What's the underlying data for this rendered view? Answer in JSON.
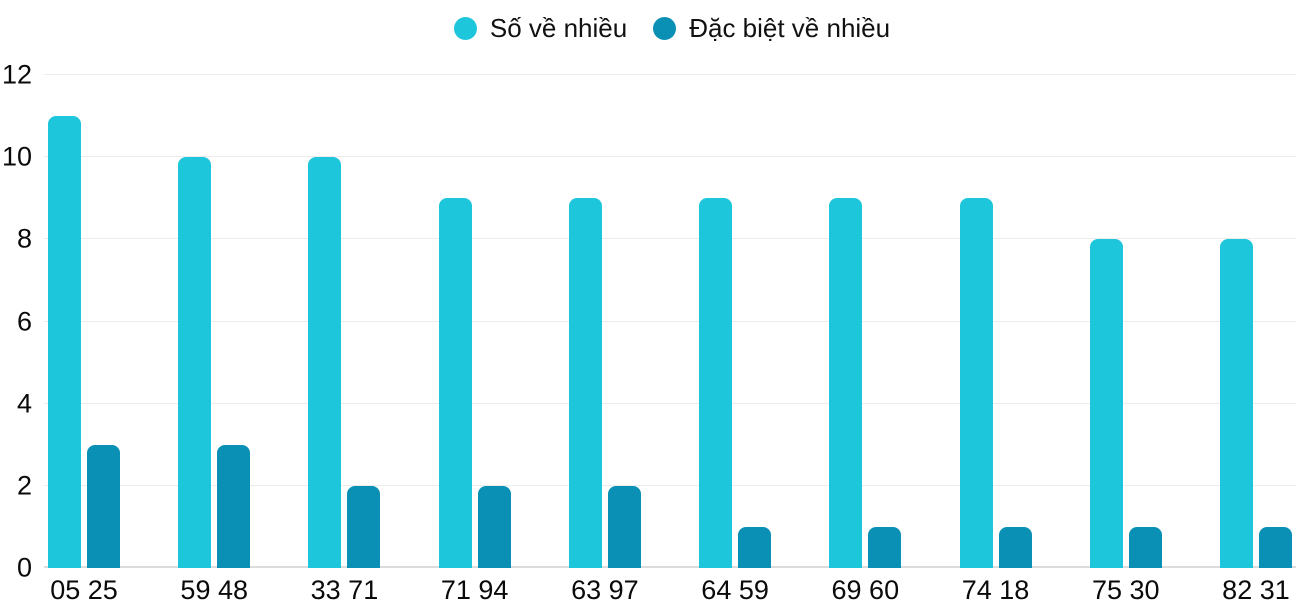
{
  "chart_data": {
    "type": "bar",
    "title": "",
    "categories": [
      "05 25",
      "59 48",
      "33 71",
      "71 94",
      "63 97",
      "64 59",
      "69 60",
      "74 18",
      "75 30",
      "82 31"
    ],
    "series": [
      {
        "name": "Số về nhiều",
        "color": "#1EC6DB",
        "values": [
          11,
          10,
          10,
          9,
          9,
          9,
          9,
          9,
          8,
          8
        ]
      },
      {
        "name": "Đặc biệt về nhiều",
        "color": "#0990B4",
        "values": [
          3,
          3,
          2,
          2,
          2,
          1,
          1,
          1,
          1,
          1
        ]
      }
    ],
    "xlabel": "",
    "ylabel": "",
    "ylim": [
      0,
      12
    ],
    "yticks": [
      0,
      2,
      4,
      6,
      8,
      10,
      12
    ],
    "grid": "horizontal",
    "legend_position": "top-center",
    "colors": {
      "grid": "#ececec",
      "axis_line": "#dcdcdc",
      "text": "#111111",
      "background": "#ffffff"
    }
  }
}
